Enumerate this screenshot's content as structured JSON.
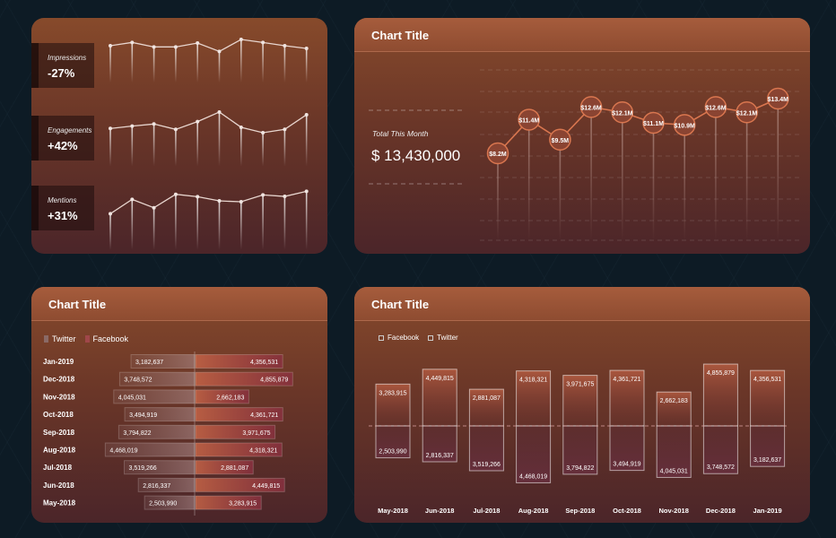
{
  "panels": {
    "p2_title": "Chart Title",
    "p3_title": "Chart Title",
    "p4_title": "Chart Title"
  },
  "kpis": [
    {
      "label": "Impressions",
      "value": "-27%"
    },
    {
      "label": "Engagements",
      "value": "+42%"
    },
    {
      "label": "Mentions",
      "value": "+31%"
    }
  ],
  "total": {
    "label": "Total This Month",
    "value": "$ 13,430,000"
  },
  "colors": {
    "panel_top": "#874a2b",
    "panel_bottom": "#4b2529",
    "accent": "#d9764f",
    "background": "#0d1b25"
  },
  "chart_data": [
    {
      "type": "line",
      "title": "",
      "series": [
        {
          "name": "Impressions",
          "values": [
            27,
            38,
            23,
            23,
            36,
            8,
            48,
            38,
            27,
            18
          ]
        },
        {
          "name": "Engagements",
          "values": [
            30,
            38,
            45,
            27,
            53,
            85,
            34,
            16,
            27,
            76
          ]
        },
        {
          "name": "Mentions",
          "values": [
            25,
            73,
            45,
            90,
            82,
            68,
            65,
            88,
            83,
            100
          ]
        }
      ]
    },
    {
      "type": "line",
      "title": "Chart Title",
      "values": [
        8.2,
        11.4,
        9.5,
        12.6,
        12.1,
        11.1,
        10.9,
        12.6,
        12.1,
        13.4
      ],
      "labels": [
        "$8.2M",
        "$11.4M",
        "$9.5M",
        "$12.6M",
        "$12.1M",
        "$11.1M",
        "$10.9M",
        "$12.6M",
        "$12.1M",
        "$13.4M"
      ],
      "grid": true
    },
    {
      "type": "bar",
      "orientation": "horizontal",
      "title": "Chart Title",
      "legend": [
        "Twitter",
        "Facebook"
      ],
      "categories": [
        "Jan-2019",
        "Dec-2018",
        "Nov-2018",
        "Oct-2018",
        "Sep-2018",
        "Aug-2018",
        "Jul-2018",
        "Jun-2018",
        "May-2018"
      ],
      "series": [
        {
          "name": "Twitter",
          "values": [
            3182637,
            3748572,
            4045031,
            3494919,
            3794822,
            4468019,
            3519266,
            2816337,
            2503990
          ],
          "labels": [
            "3,182,637",
            "3,748,572",
            "4,045,031",
            "3,494,919",
            "3,794,822",
            "4,468,019",
            "3,519,266",
            "2,816,337",
            "2,503,990"
          ]
        },
        {
          "name": "Facebook",
          "values": [
            4356531,
            4855879,
            2662183,
            4361721,
            3971675,
            4318321,
            2881087,
            4449815,
            3283915
          ],
          "labels": [
            "4,356,531",
            "4,855,879",
            "2,662,183",
            "4,361,721",
            "3,971,675",
            "4,318,321",
            "2,881,087",
            "4,449,815",
            "3,283,915"
          ]
        }
      ]
    },
    {
      "type": "bar",
      "orientation": "vertical",
      "title": "Chart Title",
      "legend": [
        "Facebook",
        "Twitter"
      ],
      "categories": [
        "May-2018",
        "Jun-2018",
        "Jul-2018",
        "Aug-2018",
        "Sep-2018",
        "Oct-2018",
        "Nov-2018",
        "Dec-2018",
        "Jan-2019"
      ],
      "series": [
        {
          "name": "Facebook",
          "values": [
            3283915,
            4449815,
            2881087,
            4318321,
            3971675,
            4361721,
            2662183,
            4855879,
            4356531
          ],
          "labels": [
            "3,283,915",
            "4,449,815",
            "2,881,087",
            "4,318,321",
            "3,971,675",
            "4,361,721",
            "2,662,183",
            "4,855,879",
            "4,356,531"
          ]
        },
        {
          "name": "Twitter",
          "values": [
            2503990,
            2816337,
            3519266,
            4468019,
            3794822,
            3494919,
            4045031,
            3748572,
            3182637
          ],
          "labels": [
            "2,503,990",
            "2,816,337",
            "3,519,266",
            "4,468,019",
            "3,794,822",
            "3,494,919",
            "4,045,031",
            "3,748,572",
            "3,182,637"
          ]
        }
      ]
    }
  ]
}
